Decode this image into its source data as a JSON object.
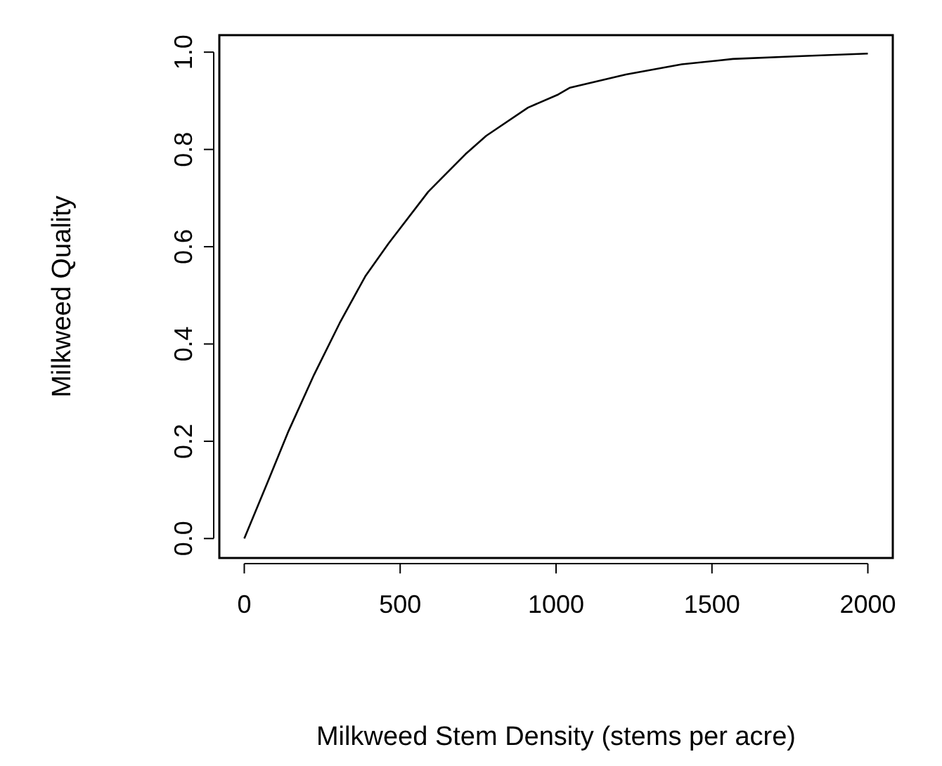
{
  "chart_data": {
    "type": "line",
    "xlabel": "Milkweed Stem Density (stems per acre)",
    "ylabel": "Milkweed Quality",
    "x": [
      0,
      75,
      142,
      224,
      306,
      388,
      463,
      590,
      709,
      776,
      910,
      1007,
      1045,
      1224,
      1403,
      1567,
      1791,
      2000
    ],
    "values": [
      0,
      0.116,
      0.221,
      0.337,
      0.443,
      0.539,
      0.607,
      0.713,
      0.79,
      0.828,
      0.886,
      0.913,
      0.927,
      0.954,
      0.975,
      0.986,
      0.992,
      0.997
    ],
    "color": "#000000",
    "xlim": [
      -80,
      2080
    ],
    "ylim": [
      -0.04,
      1.035
    ],
    "xticks": [
      0,
      500,
      1000,
      1500,
      2000
    ],
    "yticks": [
      {
        "value": 0,
        "label": "0.0"
      },
      {
        "value": 0.2,
        "label": "0.2"
      },
      {
        "value": 0.4,
        "label": "0.4"
      },
      {
        "value": 0.6,
        "label": "0.6"
      },
      {
        "value": 0.8,
        "label": "0.8"
      },
      {
        "value": 1,
        "label": "1.0"
      }
    ],
    "marker": "none",
    "line_style": "solid"
  }
}
